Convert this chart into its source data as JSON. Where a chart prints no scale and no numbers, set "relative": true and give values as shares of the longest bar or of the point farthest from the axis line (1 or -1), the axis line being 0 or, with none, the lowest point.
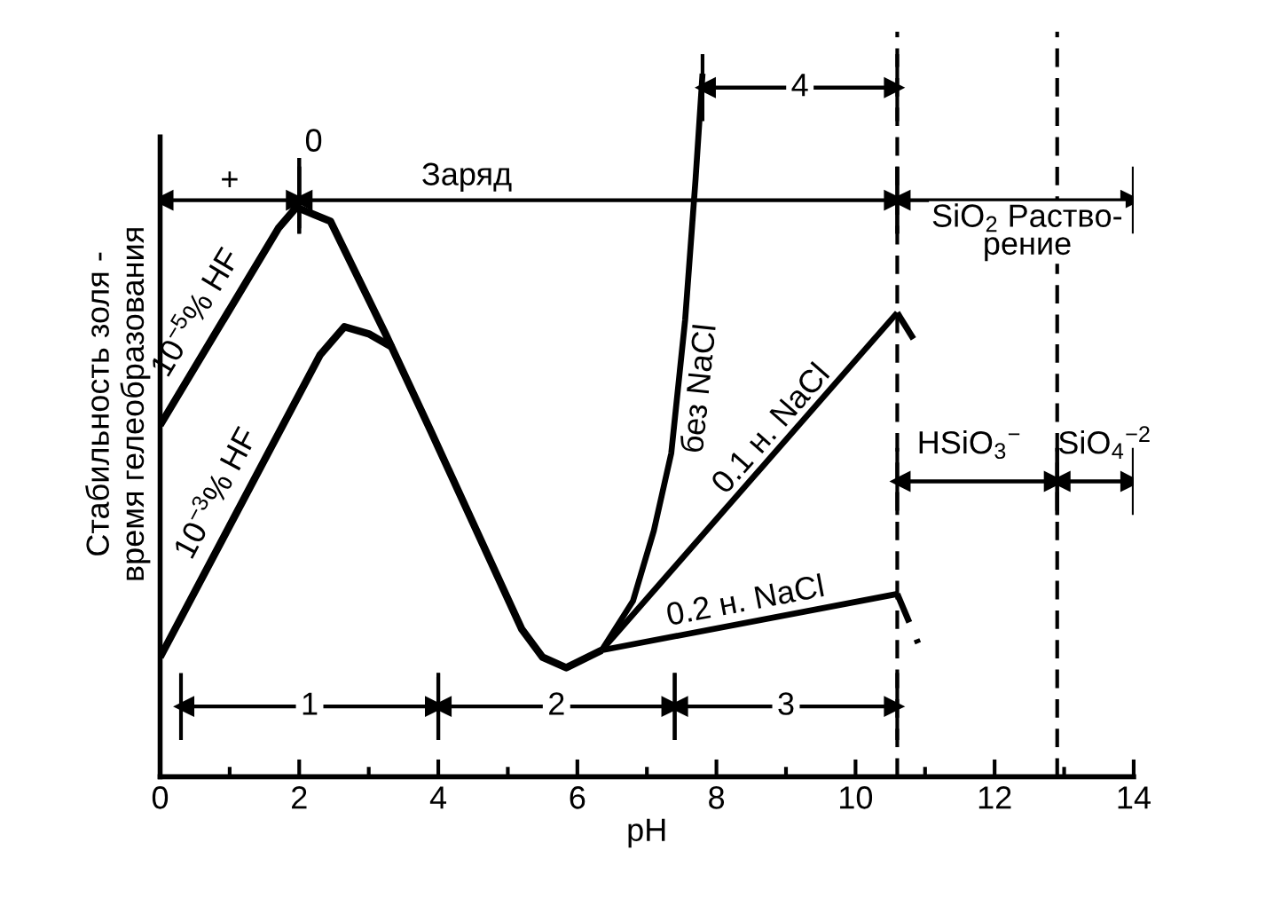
{
  "chart_data": {
    "type": "line",
    "relative": true,
    "xlabel": "pH",
    "ylabel": "Стабильность золя -\nвремя гелеобразования",
    "xlim": [
      0,
      14
    ],
    "xticks": [
      0,
      {
        "value": 1,
        "label": null
      },
      2,
      {
        "value": 3,
        "label": null
      },
      4,
      {
        "value": 5,
        "label": null
      },
      6,
      {
        "value": 7,
        "label": null
      },
      8,
      {
        "value": 9,
        "label": null
      },
      10,
      {
        "value": 11,
        "label": null
      },
      12,
      {
        "value": 13,
        "label": null
      },
      14
    ],
    "series": [
      {
        "name": "10$^{−5}$% HF",
        "color": "#000000",
        "x": [
          0,
          1.7,
          1.96,
          2.2,
          2.45,
          3.24,
          3.9,
          5.2,
          5.5,
          5.84,
          6.35
        ],
        "values": [
          0.5,
          0.78,
          0.81,
          0.8,
          0.79,
          0.63,
          0.49,
          0.21,
          0.17,
          0.155,
          0.18
        ]
      },
      {
        "name": "10$^{−3}$% HF",
        "color": "#000000",
        "x": [
          0,
          2.3,
          2.65,
          3.0,
          3.35
        ],
        "values": [
          0.17,
          0.6,
          0.64,
          0.63,
          0.61
        ]
      },
      {
        "name": "без NaCl",
        "color": "#000000",
        "x": [
          6.35,
          6.8,
          7.1,
          7.35,
          7.55,
          7.7,
          7.8
        ],
        "values": [
          0.18,
          0.25,
          0.35,
          0.46,
          0.65,
          0.85,
          1.0
        ]
      },
      {
        "name": "0.1 н. NaCl",
        "color": "#000000",
        "x": [
          6.35,
          10.6
        ],
        "values": [
          0.18,
          0.66
        ]
      },
      {
        "name": "0.2 н. NaCl",
        "color": "#000000",
        "x": [
          6.35,
          10.6
        ],
        "values": [
          0.18,
          0.26
        ]
      },
      {
        "color": "#000000",
        "line_style": "dashed",
        "x": [
          10.6,
          10.85
        ],
        "values": [
          0.66,
          0.62
        ]
      },
      {
        "color": "#000000",
        "line_style": "dashed",
        "x": [
          10.6,
          10.9
        ],
        "values": [
          0.26,
          0.19
        ]
      },
      {
        "name": "+",
        "color": "#000000",
        "marker": "triangle",
        "x": [
          0,
          2
        ],
        "values": [
          0.82,
          0.82
        ]
      },
      {
        "name": "0",
        "color": "#000000",
        "x": [
          2,
          2
        ],
        "values": [
          0.78,
          0.88
        ]
      },
      {
        "name": "Заряд",
        "color": "#000000",
        "marker": "triangle",
        "x": [
          2,
          10.6
        ],
        "values": [
          0.82,
          0.82
        ]
      },
      {
        "name": "4",
        "color": "#000000",
        "marker": "triangle",
        "x": [
          7.8,
          10.6
        ],
        "values": [
          0.98,
          0.98
        ]
      },
      {
        "name": "SiO$_{2}$ Раство-\nрение",
        "color": "#000000",
        "marker": "triangle",
        "x": [
          10.6,
          14
        ],
        "values": [
          0.82,
          0.82
        ]
      },
      {
        "name": "HSiO$_{3}$$^{−}$",
        "color": "#000000",
        "marker": "triangle",
        "x": [
          10.6,
          12.9
        ],
        "values": [
          0.42,
          0.42
        ]
      },
      {
        "name": "SiO$_{4}$$^{−2}$",
        "color": "#000000",
        "marker": "triangle",
        "x": [
          12.9,
          14
        ],
        "values": [
          0.42,
          0.42
        ]
      },
      {
        "name": "1",
        "color": "#000000",
        "marker": "triangle",
        "x": [
          0.3,
          4
        ],
        "values": [
          0.1,
          0.1
        ]
      },
      {
        "name": "2",
        "color": "#000000",
        "marker": "triangle",
        "x": [
          4,
          7.4
        ],
        "values": [
          0.1,
          0.1
        ]
      },
      {
        "name": "3",
        "color": "#000000",
        "marker": "triangle",
        "x": [
          7.4,
          10.6
        ],
        "values": [
          0.1,
          0.1
        ]
      }
    ],
    "ref_lines": [
      {
        "axis": "x",
        "value": 10.6,
        "line_style": "dashed",
        "color": "#000000"
      },
      {
        "axis": "x",
        "value": 12.9,
        "line_style": "dashed",
        "color": "#000000"
      }
    ],
    "grid": false
  }
}
